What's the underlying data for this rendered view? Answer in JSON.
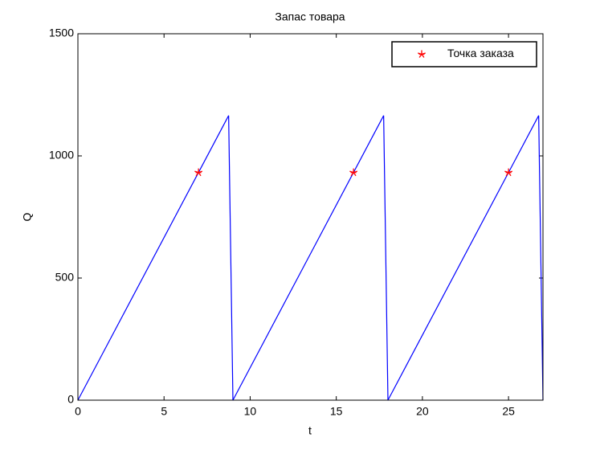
{
  "chart_data": {
    "type": "line",
    "title": "Запас товара",
    "xlabel": "t",
    "ylabel": "Q",
    "xlim": [
      0,
      27
    ],
    "ylim": [
      0,
      1500
    ],
    "xticks": [
      0,
      5,
      10,
      15,
      20,
      25
    ],
    "yticks": [
      0,
      500,
      1000,
      1500
    ],
    "legend": "upper right",
    "series": [
      {
        "color": "#0000ff",
        "x": [
          0,
          8.75,
          9,
          17.75,
          18,
          26.75,
          27
        ],
        "values": [
          0,
          1165,
          0,
          1165,
          0,
          1165,
          0
        ]
      },
      {
        "name": "Точка заказа",
        "color": "#ff0000",
        "marker": "star",
        "x": [
          7,
          16,
          25
        ],
        "values": [
          932,
          932,
          932
        ]
      }
    ]
  }
}
